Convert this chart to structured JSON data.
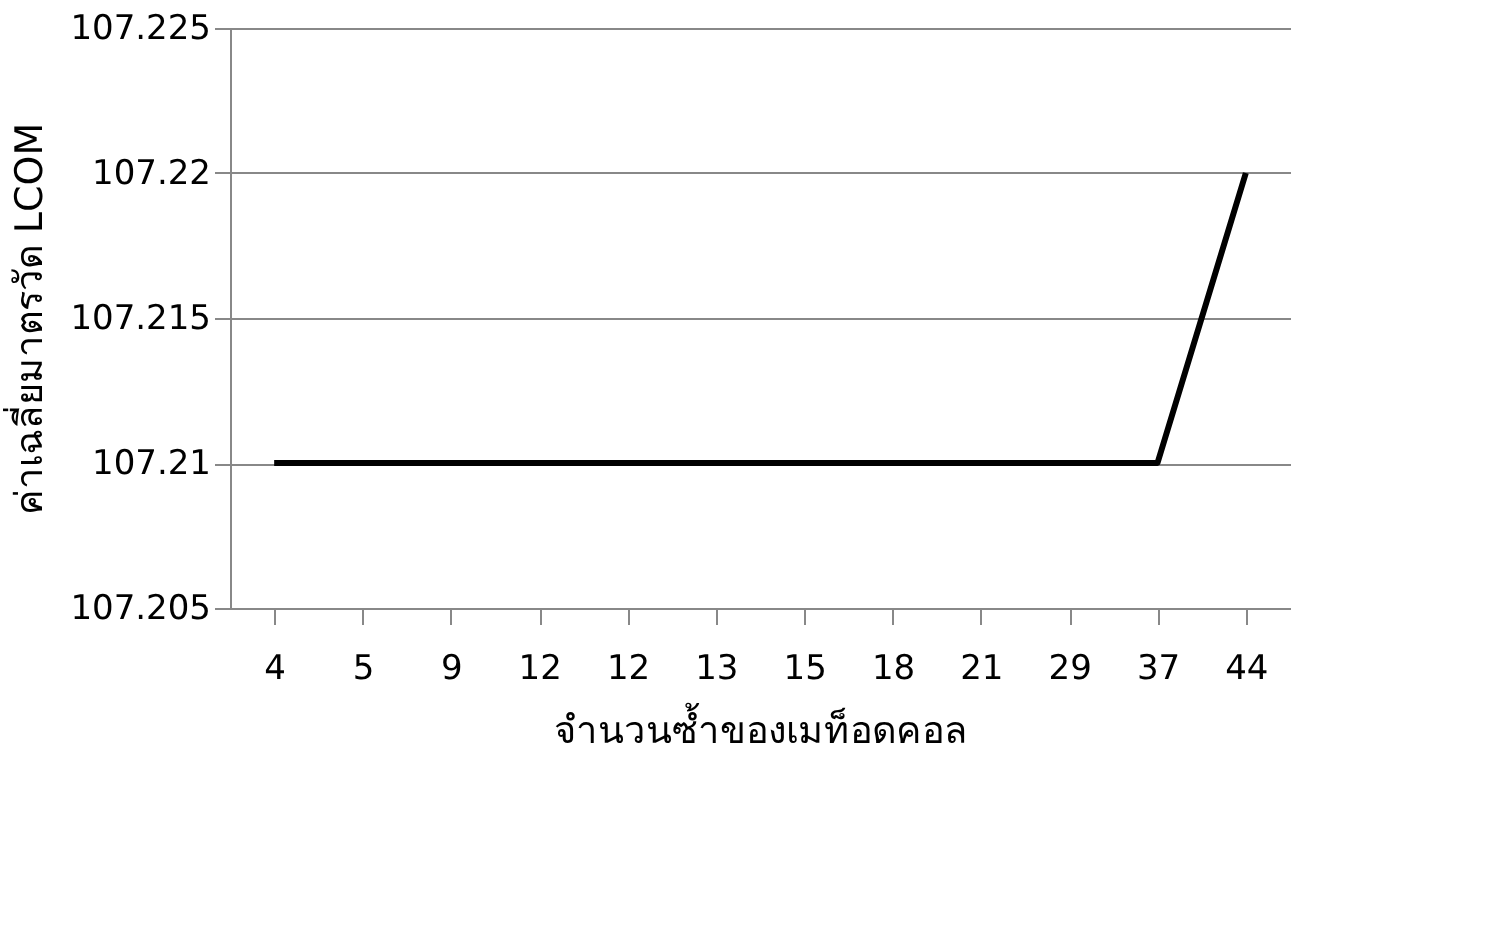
{
  "chart_data": {
    "type": "line",
    "xlabel": "จำนวนซ้ำของเมท็อดคอล",
    "ylabel": "ค่าเฉลี่ยมาตรวัด LCOM",
    "categories": [
      "4",
      "5",
      "9",
      "12",
      "12",
      "13",
      "15",
      "18",
      "21",
      "29",
      "37",
      "44"
    ],
    "series": [
      {
        "color": "#000000",
        "values": [
          107.21,
          107.21,
          107.21,
          107.21,
          107.21,
          107.21,
          107.21,
          107.21,
          107.21,
          107.21,
          107.21,
          107.22
        ]
      }
    ],
    "ylim": [
      107.205,
      107.225
    ],
    "yticks": [
      107.205,
      107.21,
      107.215,
      107.22,
      107.225
    ],
    "grid": "y",
    "marker": "none",
    "line_style": "solid"
  }
}
